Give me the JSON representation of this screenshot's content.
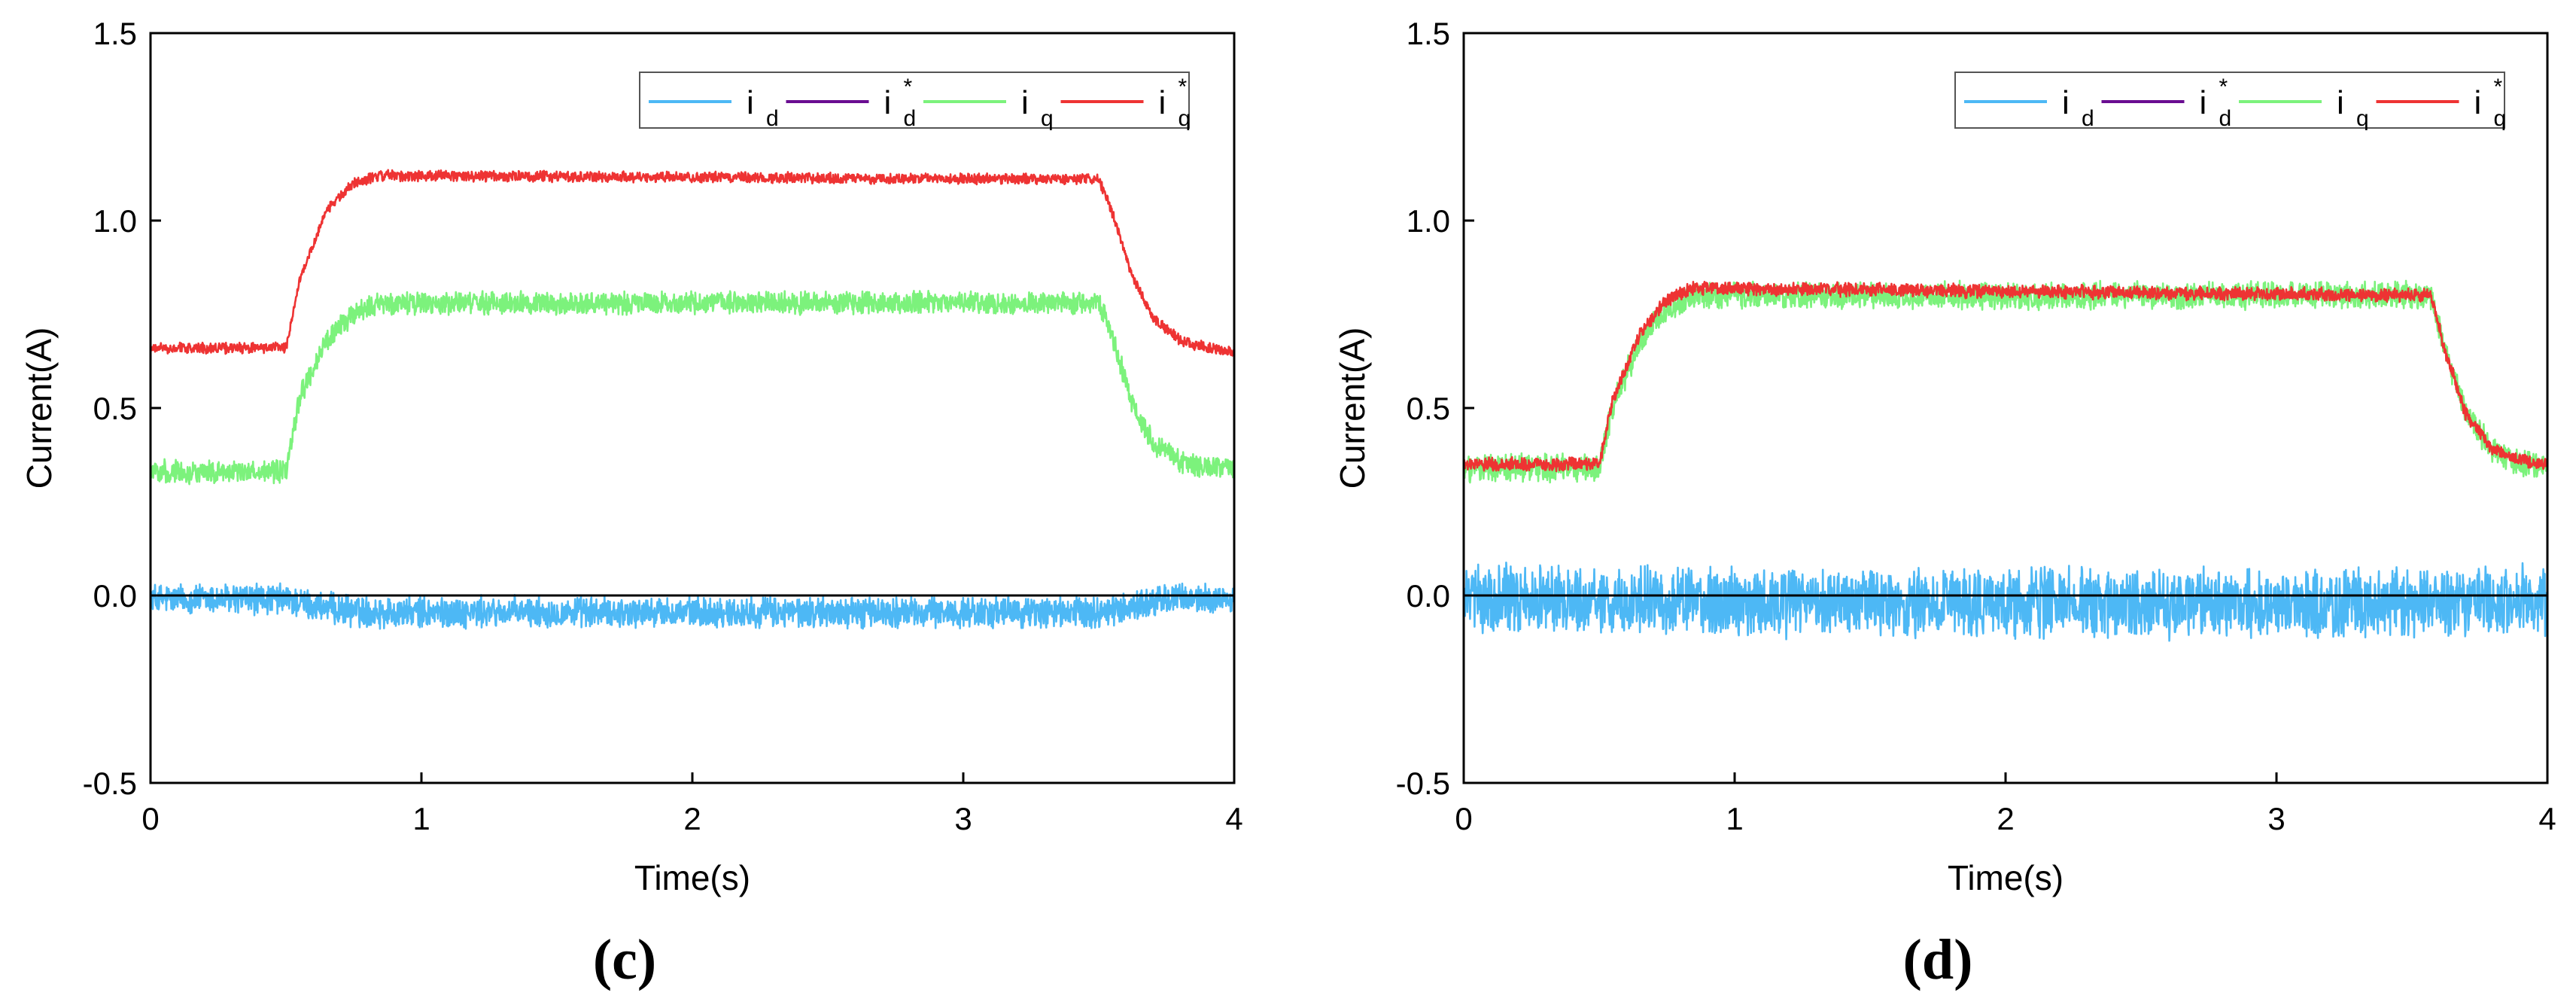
{
  "chart_data": [
    {
      "type": "line",
      "panel_label": "(c)",
      "title": "",
      "xlabel": "Time(s)",
      "ylabel": "Current(A)",
      "xlim": [
        0,
        4
      ],
      "ylim": [
        -0.5,
        1.5
      ],
      "xticks": [
        "0",
        "1",
        "2",
        "3",
        "4"
      ],
      "yticks": [
        "-0.5",
        "0.0",
        "0.5",
        "1.0",
        "1.5"
      ],
      "grid": false,
      "legend_position": "top-right",
      "legend": [
        {
          "base": "i",
          "sub": "d",
          "sup": "",
          "color": "#4db8f5"
        },
        {
          "base": "i",
          "sub": "d",
          "sup": "*",
          "color": "#6a0d91"
        },
        {
          "base": "i",
          "sub": "q",
          "sup": "",
          "color": "#7cf27c"
        },
        {
          "base": "i",
          "sub": "q",
          "sup": "*",
          "color": "#ee3333"
        }
      ],
      "series": [
        {
          "name": "id",
          "color": "#4db8f5",
          "noise": 0.035,
          "x": [
            0,
            0.5,
            0.55,
            0.7,
            0.85,
            3.5,
            3.55,
            3.65,
            3.75,
            4
          ],
          "y": [
            -0.01,
            -0.01,
            -0.02,
            -0.04,
            -0.045,
            -0.045,
            -0.04,
            -0.025,
            -0.01,
            -0.01
          ]
        },
        {
          "name": "id*",
          "color": "#000000",
          "noise": 0,
          "x": [
            0,
            4
          ],
          "y": [
            0,
            0
          ]
        },
        {
          "name": "iq",
          "color": "#7cf27c",
          "noise": 0.025,
          "x": [
            0,
            0.5,
            0.55,
            0.65,
            0.75,
            0.85,
            3.5,
            3.55,
            3.62,
            3.7,
            3.8,
            3.9,
            4
          ],
          "y": [
            0.33,
            0.33,
            0.53,
            0.68,
            0.75,
            0.78,
            0.78,
            0.69,
            0.52,
            0.41,
            0.36,
            0.34,
            0.34
          ]
        },
        {
          "name": "iq*",
          "color": "#ee3333",
          "noise": 0.012,
          "x": [
            0,
            0.5,
            0.55,
            0.65,
            0.75,
            0.85,
            3.5,
            3.55,
            3.62,
            3.7,
            3.8,
            3.9,
            4
          ],
          "y": [
            0.66,
            0.66,
            0.84,
            1.03,
            1.1,
            1.12,
            1.11,
            1.02,
            0.86,
            0.74,
            0.68,
            0.66,
            0.65
          ]
        }
      ]
    },
    {
      "type": "line",
      "panel_label": "(d)",
      "title": "",
      "xlabel": "Time(s)",
      "ylabel": "Current(A)",
      "xlim": [
        0,
        4
      ],
      "ylim": [
        -0.5,
        1.5
      ],
      "xticks": [
        "0",
        "1",
        "2",
        "3",
        "4"
      ],
      "yticks": [
        "-0.5",
        "0.0",
        "0.5",
        "1.0",
        "1.5"
      ],
      "grid": false,
      "legend_position": "top-right",
      "legend": [
        {
          "base": "i",
          "sub": "d",
          "sup": "",
          "color": "#4db8f5"
        },
        {
          "base": "i",
          "sub": "d",
          "sup": "*",
          "color": "#6a0d91"
        },
        {
          "base": "i",
          "sub": "q",
          "sup": "",
          "color": "#7cf27c"
        },
        {
          "base": "i",
          "sub": "q",
          "sup": "*",
          "color": "#ee3333"
        }
      ],
      "series": [
        {
          "name": "id",
          "color": "#4db8f5",
          "noise": 0.075,
          "x": [
            0,
            0.5,
            0.6,
            0.75,
            3.55,
            3.7,
            4
          ],
          "y": [
            -0.01,
            -0.01,
            -0.015,
            -0.02,
            -0.02,
            -0.01,
            -0.01
          ]
        },
        {
          "name": "id*",
          "color": "#000000",
          "noise": 0,
          "x": [
            0,
            4
          ],
          "y": [
            0,
            0
          ]
        },
        {
          "name": "iq",
          "color": "#7cf27c",
          "noise": 0.03,
          "x": [
            0,
            0.5,
            0.55,
            0.65,
            0.75,
            0.85,
            3.57,
            3.62,
            3.7,
            3.8,
            3.9,
            4
          ],
          "y": [
            0.34,
            0.34,
            0.5,
            0.68,
            0.76,
            0.8,
            0.8,
            0.66,
            0.48,
            0.39,
            0.35,
            0.35
          ]
        },
        {
          "name": "iq*",
          "color": "#ee3333",
          "noise": 0.015,
          "x": [
            0,
            0.5,
            0.55,
            0.65,
            0.75,
            0.85,
            3.57,
            3.62,
            3.7,
            3.8,
            3.9,
            4
          ],
          "y": [
            0.35,
            0.35,
            0.52,
            0.7,
            0.79,
            0.82,
            0.8,
            0.66,
            0.48,
            0.39,
            0.36,
            0.35
          ]
        }
      ]
    }
  ]
}
